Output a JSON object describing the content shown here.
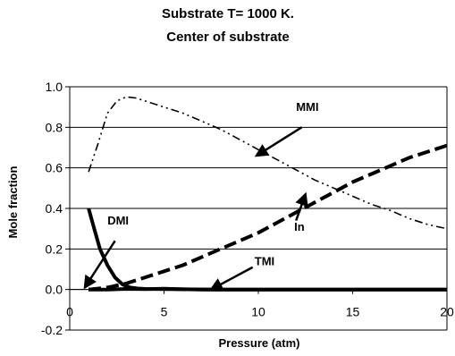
{
  "chart_data": {
    "type": "line",
    "title": "Substrate T= 1000 K.",
    "subtitle": "Center of substrate",
    "xlabel": "Pressure (atm)",
    "ylabel": "Mole fraction",
    "xlim": [
      0,
      20
    ],
    "ylim": [
      -0.2,
      1.0
    ],
    "x_ticks": [
      "0",
      "5",
      "10",
      "15",
      "20"
    ],
    "y_ticks": [
      "-0.2",
      "0.0",
      "0.2",
      "0.4",
      "0.6",
      "0.8",
      "1.0"
    ],
    "grid": "horizontal",
    "series": [
      {
        "name": "MMI",
        "style": "dash-dot-dot",
        "x": [
          1,
          1.5,
          2,
          2.5,
          3,
          3.5,
          4,
          5,
          6,
          7,
          8,
          9,
          10,
          11,
          12,
          13,
          14,
          15,
          16,
          17,
          18,
          19,
          20
        ],
        "y": [
          0.58,
          0.72,
          0.87,
          0.93,
          0.95,
          0.945,
          0.93,
          0.9,
          0.87,
          0.83,
          0.79,
          0.74,
          0.69,
          0.64,
          0.59,
          0.54,
          0.5,
          0.46,
          0.42,
          0.39,
          0.35,
          0.32,
          0.3
        ]
      },
      {
        "name": "In",
        "style": "dashed-thick",
        "x": [
          1,
          2,
          3,
          4,
          5,
          6,
          7,
          8,
          9,
          10,
          11,
          12,
          13,
          14,
          15,
          16,
          17,
          18,
          19,
          20
        ],
        "y": [
          0.0,
          0.01,
          0.03,
          0.06,
          0.09,
          0.12,
          0.16,
          0.2,
          0.24,
          0.28,
          0.33,
          0.38,
          0.43,
          0.48,
          0.53,
          0.57,
          0.61,
          0.65,
          0.68,
          0.71
        ]
      },
      {
        "name": "DMI",
        "style": "solid-thick",
        "x": [
          1,
          1.3,
          1.6,
          2,
          2.4,
          2.8,
          3.2,
          3.6,
          4,
          5,
          6,
          7,
          10,
          15,
          20
        ],
        "y": [
          0.4,
          0.3,
          0.2,
          0.12,
          0.06,
          0.025,
          0.01,
          0.005,
          0.003,
          0.002,
          0.001,
          0.0,
          0.0,
          0.0,
          0.0
        ]
      },
      {
        "name": "TMI",
        "style": "solid-thick",
        "x": [
          1,
          2,
          3,
          4,
          5,
          6,
          8,
          10,
          12,
          14,
          16,
          18,
          20
        ],
        "y": [
          0.0,
          0.0,
          0.003,
          0.002,
          0.004,
          0.001,
          0.0,
          0.0,
          0.0,
          0.0,
          0.0,
          0.0,
          0.0
        ]
      }
    ],
    "annotations": [
      {
        "text": "MMI",
        "x": 12.0,
        "y": 0.88,
        "arrow_from": [
          12.3,
          0.8
        ],
        "arrow_to": [
          9.9,
          0.66
        ]
      },
      {
        "text": "In",
        "x": 11.9,
        "y": 0.29,
        "arrow_from": [
          12.0,
          0.34
        ],
        "arrow_to": [
          12.5,
          0.47
        ]
      },
      {
        "text": "DMI",
        "x": 2.0,
        "y": 0.32,
        "arrow_from": [
          2.4,
          0.24
        ],
        "arrow_to": [
          0.8,
          0.01
        ]
      },
      {
        "text": "TMI",
        "x": 9.8,
        "y": 0.12,
        "arrow_from": [
          9.7,
          0.11
        ],
        "arrow_to": [
          7.5,
          0.0
        ]
      }
    ]
  }
}
